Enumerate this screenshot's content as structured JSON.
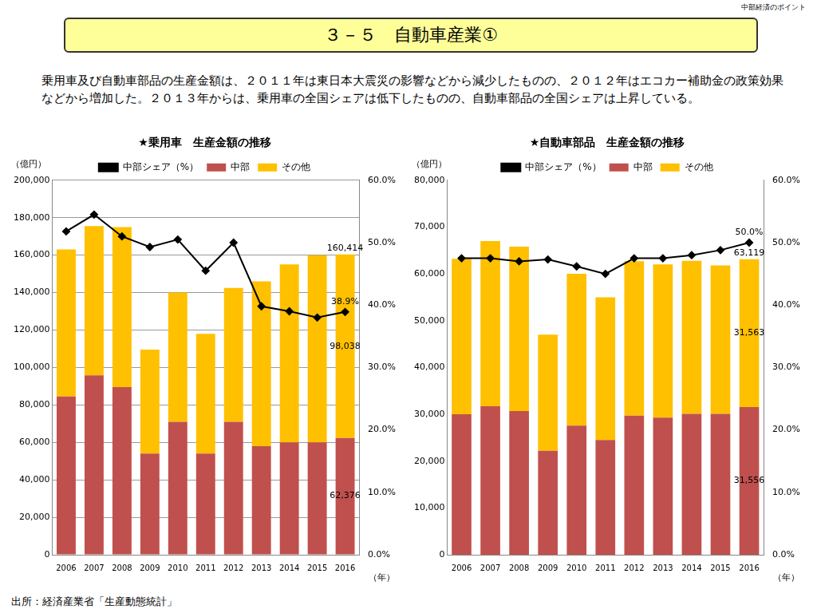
{
  "header": "中部経済のポイント",
  "title": "３－５　自動車産業①",
  "text": "乗用車及び自動車部品の生産金額は、２０１１年は東日本大震災の影響などから減少したものの、２０１２年はエコカー補助金の政策効果などから増加した。２０１３年からは、乗用車の全国シェアは低下したものの、自動車部品の全国シェアは上昇している。",
  "source": "出所：経済産業省「生産動態統計」",
  "chart_data": [
    {
      "type": "bar",
      "title": "★乗用車　生産金額の推移",
      "y_label": "（億円）",
      "x_label": "（年）",
      "stacked": true,
      "grid": true,
      "legend": "top",
      "categories": [
        "2006",
        "2007",
        "2008",
        "2009",
        "2010",
        "2011",
        "2012",
        "2013",
        "2014",
        "2015",
        "2016"
      ],
      "series": [
        {
          "name": "中部",
          "type": "bar",
          "color": "#c0504d",
          "values": [
            84500,
            95800,
            89500,
            54000,
            71000,
            54000,
            71000,
            58000,
            60000,
            60000,
            62376
          ],
          "value_labels": [
            null,
            null,
            null,
            null,
            null,
            null,
            null,
            null,
            null,
            null,
            "62,376"
          ]
        },
        {
          "name": "その他",
          "type": "bar",
          "color": "#ffc000",
          "values": [
            78500,
            79700,
            85500,
            55500,
            69000,
            64000,
            71500,
            88000,
            95000,
            100000,
            98038
          ],
          "value_labels": [
            null,
            null,
            null,
            null,
            null,
            null,
            null,
            null,
            null,
            null,
            "98,038"
          ]
        },
        {
          "name": "中部シェア（%）",
          "type": "line",
          "axis": "y2",
          "color": "#000000",
          "marker": "diamond",
          "values": [
            51.8,
            54.5,
            51.0,
            49.3,
            50.5,
            45.5,
            50.0,
            39.8,
            39.0,
            38.0,
            38.9
          ],
          "value_labels": [
            null,
            null,
            null,
            null,
            null,
            null,
            null,
            null,
            null,
            null,
            "38.9%"
          ]
        }
      ],
      "annotations": [
        {
          "text": "160,414",
          "x": "2016",
          "y": 160414
        }
      ],
      "ylim": [
        0,
        200000
      ],
      "yticks": [
        {
          "value": 0,
          "label": "0"
        },
        {
          "value": 20000,
          "label": "20,000"
        },
        {
          "value": 40000,
          "label": "40,000"
        },
        {
          "value": 60000,
          "label": "60,000"
        },
        {
          "value": 80000,
          "label": "80,000"
        },
        {
          "value": 100000,
          "label": "100,000"
        },
        {
          "value": 120000,
          "label": "120,000"
        },
        {
          "value": 140000,
          "label": "140,000"
        },
        {
          "value": 160000,
          "label": "160,000"
        },
        {
          "value": 180000,
          "label": "180,000"
        },
        {
          "value": 200000,
          "label": "200,000"
        }
      ],
      "y2lim": [
        0,
        60
      ],
      "y2ticks": [
        {
          "value": 0,
          "label": "0.0%"
        },
        {
          "value": 10,
          "label": "10.0%"
        },
        {
          "value": 20,
          "label": "20.0%"
        },
        {
          "value": 30,
          "label": "30.0%"
        },
        {
          "value": 40,
          "label": "40.0%"
        },
        {
          "value": 50,
          "label": "50.0%"
        },
        {
          "value": 60,
          "label": "60.0%"
        }
      ]
    },
    {
      "type": "bar",
      "title": "★自動車部品　生産金額の推移",
      "y_label": "（億円）",
      "x_label": "（年）",
      "stacked": true,
      "grid": false,
      "legend": "top",
      "categories": [
        "2006",
        "2007",
        "2008",
        "2009",
        "2010",
        "2011",
        "2012",
        "2013",
        "2014",
        "2015",
        "2016"
      ],
      "series": [
        {
          "name": "中部",
          "type": "bar",
          "color": "#c0504d",
          "values": [
            30000,
            31700,
            30700,
            22200,
            27600,
            24500,
            29700,
            29300,
            30100,
            30100,
            31556
          ],
          "value_labels": [
            null,
            null,
            null,
            null,
            null,
            null,
            null,
            null,
            null,
            null,
            "31,556"
          ]
        },
        {
          "name": "その他",
          "type": "bar",
          "color": "#ffc000",
          "values": [
            33200,
            35300,
            35100,
            24800,
            32400,
            30500,
            33000,
            32700,
            32700,
            31700,
            31563
          ],
          "value_labels": [
            null,
            null,
            null,
            null,
            null,
            null,
            null,
            null,
            null,
            null,
            "31,563"
          ]
        },
        {
          "name": "中部シェア（%）",
          "type": "line",
          "axis": "y2",
          "color": "#000000",
          "marker": "diamond",
          "values": [
            47.5,
            47.5,
            47.0,
            47.3,
            46.2,
            45.0,
            47.5,
            47.5,
            48.0,
            48.8,
            50.0
          ],
          "value_labels": [
            null,
            null,
            null,
            null,
            null,
            null,
            null,
            null,
            null,
            null,
            "50.0%"
          ]
        }
      ],
      "annotations": [
        {
          "text": "63,119",
          "x": "2016",
          "y": 63119
        }
      ],
      "ylim": [
        0,
        80000
      ],
      "yticks": [
        {
          "value": 0,
          "label": "0"
        },
        {
          "value": 10000,
          "label": "10,000"
        },
        {
          "value": 20000,
          "label": "20,000"
        },
        {
          "value": 30000,
          "label": "30,000"
        },
        {
          "value": 40000,
          "label": "40,000"
        },
        {
          "value": 50000,
          "label": "50,000"
        },
        {
          "value": 60000,
          "label": "60,000"
        },
        {
          "value": 70000,
          "label": "70,000"
        },
        {
          "value": 80000,
          "label": "80,000"
        }
      ],
      "y2lim": [
        0,
        60
      ],
      "y2ticks": [
        {
          "value": 0,
          "label": "0.0%"
        },
        {
          "value": 10,
          "label": "10.0%"
        },
        {
          "value": 20,
          "label": "20.0%"
        },
        {
          "value": 30,
          "label": "30.0%"
        },
        {
          "value": 40,
          "label": "40.0%"
        },
        {
          "value": 50,
          "label": "50.0%"
        },
        {
          "value": 60,
          "label": "60.0%"
        }
      ]
    }
  ]
}
